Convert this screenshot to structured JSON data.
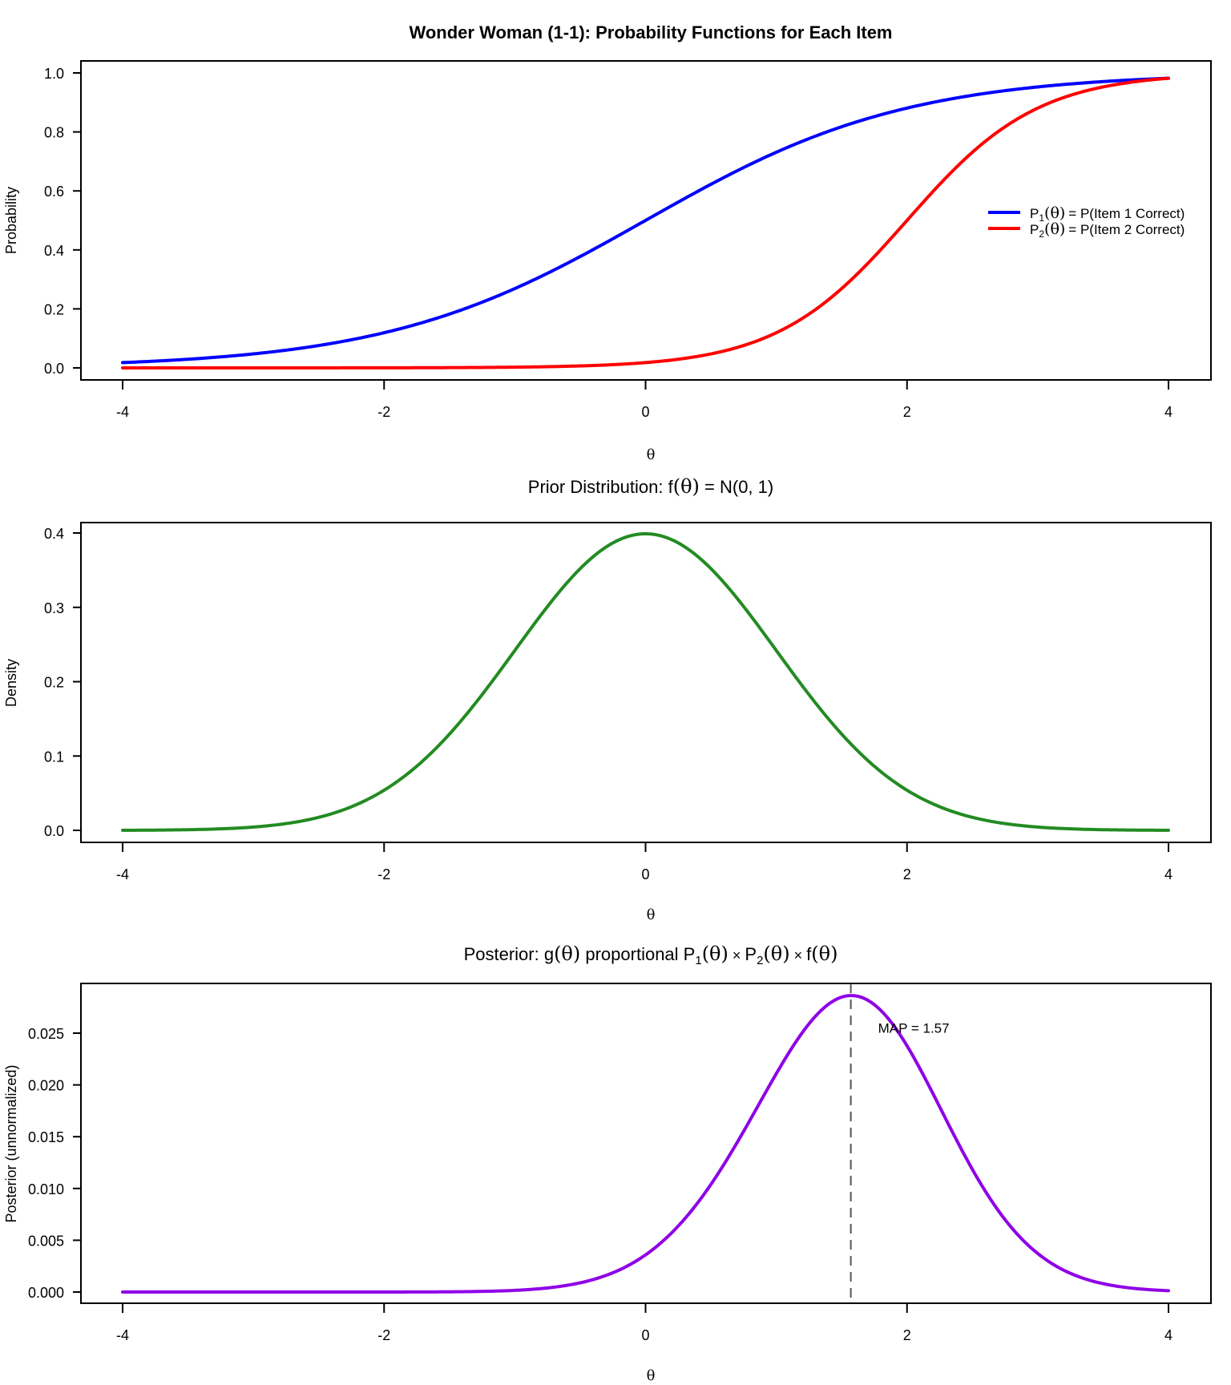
{
  "title": "Wonder Woman (1-1): Probability Functions for Each Item",
  "chart_data": [
    {
      "type": "line",
      "title": "Wonder Woman (1-1): Probability Functions for Each Item",
      "xlabel": "θ",
      "ylabel": "Probability",
      "xlim": [
        -4,
        4
      ],
      "ylim": [
        0,
        1
      ],
      "xticks": [
        -4,
        -2,
        0,
        2,
        4
      ],
      "xtick_labels": [
        "-4",
        "-2",
        "0",
        "2",
        "4"
      ],
      "yticks": [
        0,
        0.2,
        0.4,
        0.6,
        0.8,
        1.0
      ],
      "ytick_labels": [
        "0.0",
        "0.2",
        "0.4",
        "0.6",
        "0.8",
        "1.0"
      ],
      "grid": false,
      "legend_position": "right",
      "series": [
        {
          "name": "P1(θ) = P(Item 1 Correct)",
          "legend_main": "P",
          "legend_sub": "1",
          "legend_rest": "= P(Item 1 Correct)",
          "color": "#0000FF",
          "model": "2PL logistic",
          "a": 1,
          "b": 0,
          "x": [
            -4,
            -3,
            -2,
            -1,
            0,
            1,
            2,
            3,
            4
          ],
          "y": [
            0.018,
            0.047,
            0.119,
            0.269,
            0.5,
            0.731,
            0.881,
            0.953,
            0.982
          ]
        },
        {
          "name": "P2(θ) = P(Item 2 Correct)",
          "legend_main": "P",
          "legend_sub": "2",
          "legend_rest": "= P(Item 2 Correct)",
          "color": "#FF0000",
          "model": "2PL logistic",
          "a": 2,
          "b": 2,
          "x": [
            -4,
            -3,
            -2,
            -1,
            0,
            1,
            1.5,
            2,
            2.5,
            3,
            4
          ],
          "y": [
            0.0,
            0.0,
            0.0,
            0.002,
            0.018,
            0.119,
            0.269,
            0.5,
            0.731,
            0.881,
            0.982
          ]
        }
      ]
    },
    {
      "type": "line",
      "title": "Prior Distribution: f(θ) = N(0, 1)",
      "title_parts": [
        "Prior Distribution: f",
        "(θ)",
        " = N(0, 1)"
      ],
      "xlabel": "θ",
      "ylabel": "Density",
      "xlim": [
        -4,
        4
      ],
      "ylim": [
        0,
        0.4
      ],
      "xticks": [
        -4,
        -2,
        0,
        2,
        4
      ],
      "xtick_labels": [
        "-4",
        "-2",
        "0",
        "2",
        "4"
      ],
      "yticks": [
        0,
        0.1,
        0.2,
        0.3,
        0.4
      ],
      "ytick_labels": [
        "0.0",
        "0.1",
        "0.2",
        "0.3",
        "0.4"
      ],
      "grid": false,
      "series": [
        {
          "name": "f(θ)",
          "color": "#228B22",
          "model": "normal",
          "mean": 0,
          "sd": 1,
          "x": [
            -4,
            -3,
            -2,
            -1,
            0,
            1,
            2,
            3,
            4
          ],
          "y": [
            0.0001,
            0.0044,
            0.054,
            0.242,
            0.399,
            0.242,
            0.054,
            0.0044,
            0.0001
          ]
        }
      ]
    },
    {
      "type": "line",
      "title": "Posterior: g(θ) proportional P1(θ) × P2(θ) × f(θ)",
      "xlabel": "θ",
      "ylabel": "Posterior (unnormalized)",
      "xlim": [
        -4,
        4
      ],
      "ylim": [
        0,
        0.0287
      ],
      "xticks": [
        -4,
        -2,
        0,
        2,
        4
      ],
      "xtick_labels": [
        "-4",
        "-2",
        "0",
        "2",
        "4"
      ],
      "yticks": [
        0,
        0.005,
        0.01,
        0.015,
        0.02,
        0.025
      ],
      "ytick_labels": [
        "0.000",
        "0.005",
        "0.010",
        "0.015",
        "0.020",
        "0.025"
      ],
      "grid": false,
      "series": [
        {
          "name": "g(θ)",
          "color": "#8F00E6",
          "model": "P1 × P2 × f",
          "x": [
            -4,
            -2,
            -1,
            0,
            1,
            1.57,
            2,
            3,
            4
          ],
          "y": [
            0.0,
            0.0,
            0.0003,
            0.0036,
            0.0205,
            0.0286,
            0.0231,
            0.0049,
            0.0001
          ]
        }
      ],
      "annotations": [
        {
          "type": "vline",
          "x": 1.57,
          "style": "dashed",
          "color": "#555555"
        },
        {
          "type": "text",
          "text": "MAP = 1.57",
          "x": 1.57,
          "y": 0.0255
        }
      ]
    }
  ]
}
